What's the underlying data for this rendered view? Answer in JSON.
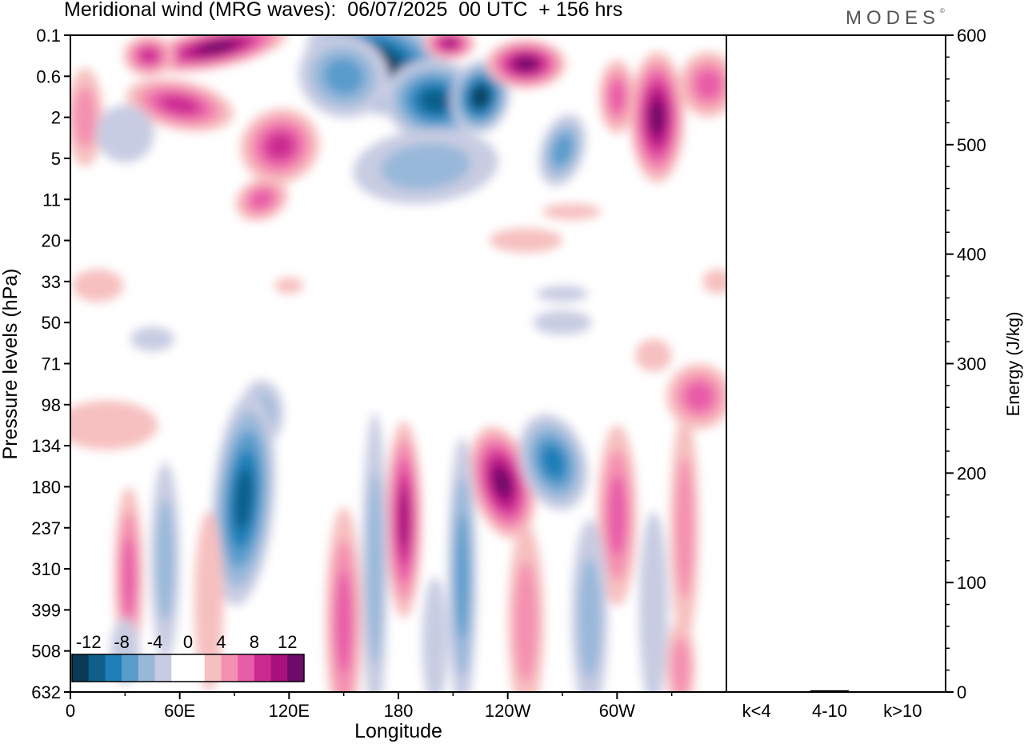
{
  "title": "Meridional wind (MRG waves):  06/07/2025  00 UTC  + 156 hrs",
  "logo_text": "MODES",
  "logo_mark": "©",
  "chart_data": [
    {
      "type": "heatmap",
      "xlabel": "Longitude",
      "ylabel": "Pressure levels (hPa)",
      "x_ticks": [
        "0",
        "60E",
        "120E",
        "180",
        "120W",
        "60W"
      ],
      "y_ticks": [
        "0.1",
        "0.6",
        "2",
        "5",
        "11",
        "20",
        "33",
        "50",
        "71",
        "98",
        "134",
        "180",
        "237",
        "310",
        "399",
        "508",
        "632"
      ],
      "colorbar_labels": [
        "-12",
        "-8",
        "-4",
        "0",
        "4",
        "8",
        "12"
      ],
      "colorbar_levels": [
        -14,
        -12,
        -10,
        -8,
        -6,
        -4,
        -2,
        2,
        4,
        6,
        8,
        10,
        12,
        14
      ],
      "colorbar_colors": [
        "#0a3a55",
        "#0f5f8a",
        "#1f7fb8",
        "#5a9ccc",
        "#98b8da",
        "#c8cce2",
        "#ffffff",
        "#ffffff",
        "#f7c0c0",
        "#f48fb1",
        "#e85ca8",
        "#cc2a91",
        "#a8117e",
        "#6d0a6a"
      ],
      "features": [
        {
          "lon": 95,
          "level": "134-237",
          "type": "negative",
          "max_abs": 10
        },
        {
          "lon": 183,
          "level": "134-237",
          "type": "positive",
          "max_abs": 10
        },
        {
          "lon": 237,
          "level": "134",
          "type": "positive",
          "max_abs": 14
        },
        {
          "lon": 265,
          "level": "134",
          "type": "negative",
          "max_abs": 10
        },
        {
          "lon": 300,
          "level": "180",
          "type": "positive",
          "max_abs": 8
        },
        {
          "lon": 170,
          "level": "0.1-0.6",
          "type": "negative",
          "max_abs": 14
        },
        {
          "lon": 80,
          "level": "0.1",
          "type": "positive",
          "max_abs": 14
        },
        {
          "lon": 257,
          "level": "0.6",
          "type": "positive",
          "max_abs": 14
        },
        {
          "lon": 322,
          "level": "2",
          "type": "positive",
          "max_abs": 14
        }
      ]
    },
    {
      "type": "bar",
      "ylabel": "Energy (J/kg)",
      "ylim": [
        0,
        600
      ],
      "y_ticks": [
        "0",
        "100",
        "200",
        "300",
        "400",
        "500",
        "600"
      ],
      "categories": [
        "k<4",
        "4-10",
        "k>10"
      ],
      "values": [
        0.4,
        1.6,
        0.3
      ]
    }
  ]
}
